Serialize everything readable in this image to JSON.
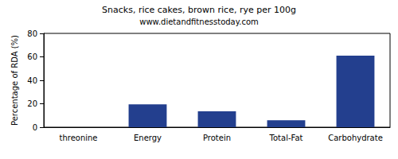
{
  "chart_data": {
    "type": "bar",
    "title": "Snacks, rice cakes, brown rice, rye per 100g",
    "subtitle": "www.dietandfitnesstoday.com",
    "y_label": "Percentage of RDA (%)",
    "categories": [
      "threonine",
      "Energy",
      "Protein",
      "Total-Fat",
      "Carbohydrate"
    ],
    "values": [
      0,
      19.5,
      13.5,
      6,
      61
    ],
    "color": "#233f8e",
    "ylim": [
      0,
      80
    ],
    "yticks": [
      0,
      20,
      40,
      60,
      80
    ],
    "grid": false
  }
}
